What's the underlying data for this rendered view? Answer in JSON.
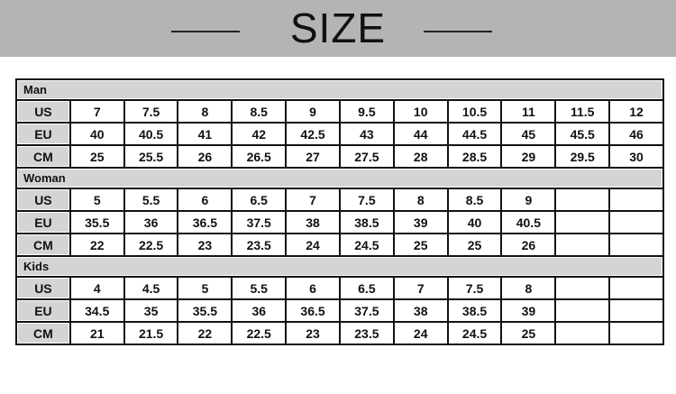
{
  "header": {
    "title": "SIZE"
  },
  "sections": [
    {
      "name": "Man",
      "rows": [
        {
          "label": "US",
          "values": [
            "7",
            "7.5",
            "8",
            "8.5",
            "9",
            "9.5",
            "10",
            "10.5",
            "11",
            "11.5",
            "12"
          ]
        },
        {
          "label": "EU",
          "values": [
            "40",
            "40.5",
            "41",
            "42",
            "42.5",
            "43",
            "44",
            "44.5",
            "45",
            "45.5",
            "46"
          ]
        },
        {
          "label": "CM",
          "values": [
            "25",
            "25.5",
            "26",
            "26.5",
            "27",
            "27.5",
            "28",
            "28.5",
            "29",
            "29.5",
            "30"
          ]
        }
      ]
    },
    {
      "name": "Woman",
      "rows": [
        {
          "label": "US",
          "values": [
            "5",
            "5.5",
            "6",
            "6.5",
            "7",
            "7.5",
            "8",
            "8.5",
            "9",
            "",
            ""
          ]
        },
        {
          "label": "EU",
          "values": [
            "35.5",
            "36",
            "36.5",
            "37.5",
            "38",
            "38.5",
            "39",
            "40",
            "40.5",
            "",
            ""
          ]
        },
        {
          "label": "CM",
          "values": [
            "22",
            "22.5",
            "23",
            "23.5",
            "24",
            "24.5",
            "25",
            "25",
            "26",
            "",
            ""
          ]
        }
      ]
    },
    {
      "name": "Kids",
      "rows": [
        {
          "label": "US",
          "values": [
            "4",
            "4.5",
            "5",
            "5.5",
            "6",
            "6.5",
            "7",
            "7.5",
            "8",
            "",
            ""
          ]
        },
        {
          "label": "EU",
          "values": [
            "34.5",
            "35",
            "35.5",
            "36",
            "36.5",
            "37.5",
            "38",
            "38.5",
            "39",
            "",
            ""
          ]
        },
        {
          "label": "CM",
          "values": [
            "21",
            "21.5",
            "22",
            "22.5",
            "23",
            "23.5",
            "24",
            "24.5",
            "25",
            "",
            ""
          ]
        }
      ]
    }
  ],
  "colors": {
    "banner": "#b4b4b4",
    "label_cell": "#d4d4d4"
  }
}
